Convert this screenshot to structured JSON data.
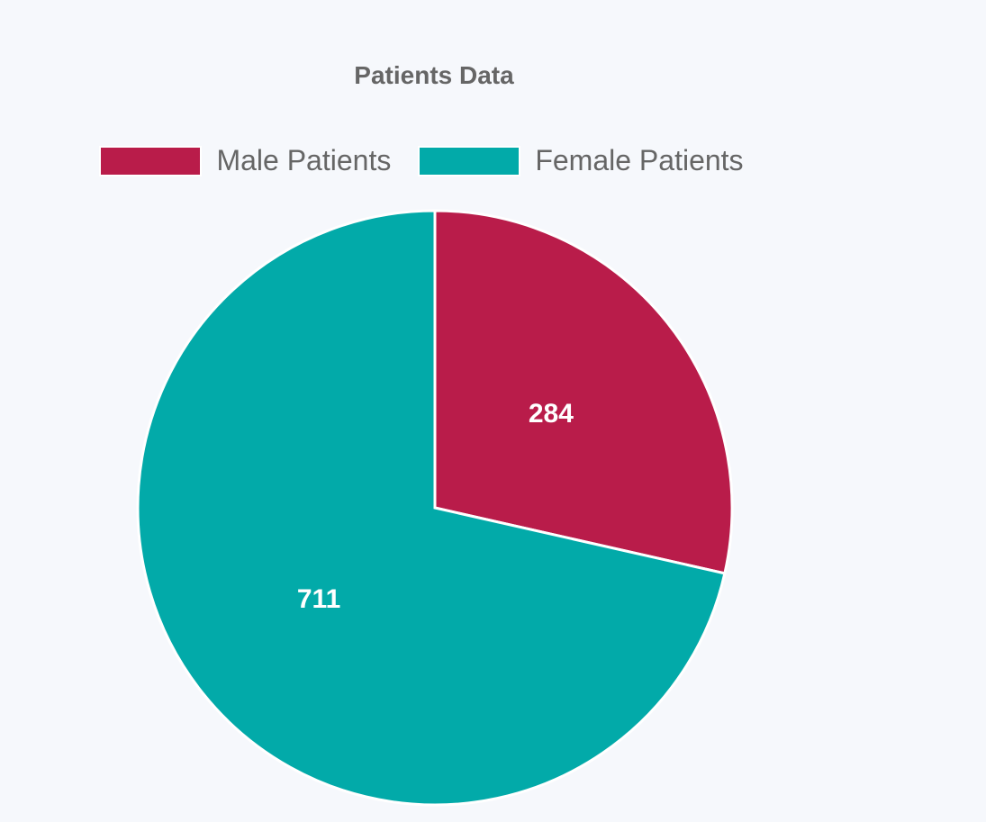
{
  "chart_data": {
    "type": "pie",
    "title": "Patients Data",
    "legend_position": "top",
    "categories": [
      "Male Patients",
      "Female Patients"
    ],
    "values": [
      284,
      711
    ],
    "colors": [
      "#b91c4a",
      "#02aaa9"
    ],
    "data_labels": [
      "284",
      "711"
    ]
  }
}
